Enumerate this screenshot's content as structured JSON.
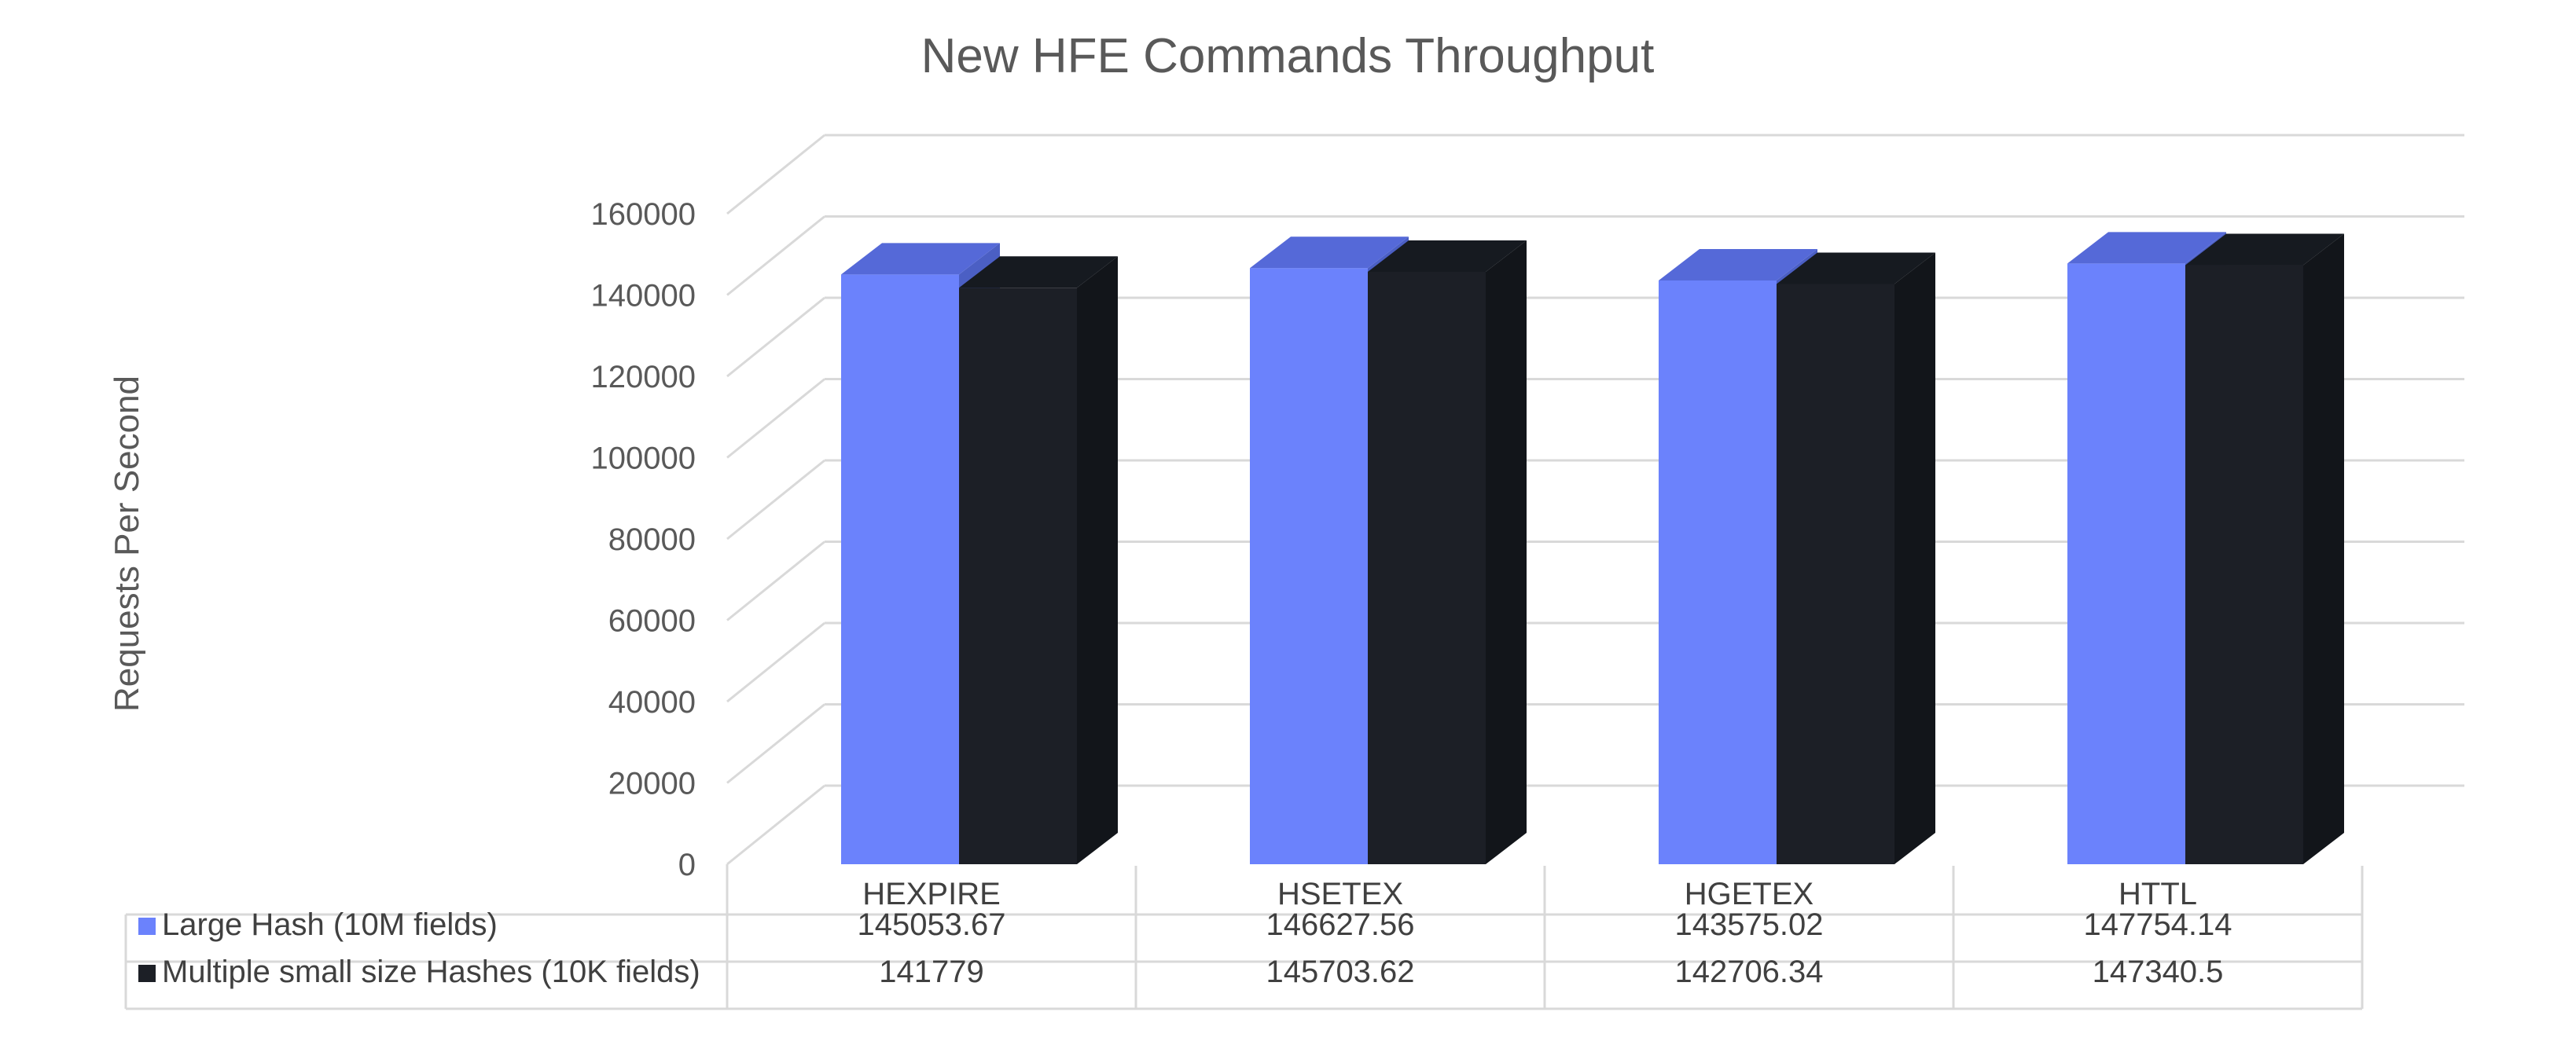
{
  "chart_data": {
    "type": "bar",
    "title": "New HFE Commands Throughput",
    "ylabel": "Requests Per Second",
    "xlabel": "",
    "categories": [
      "HEXPIRE",
      "HSETEX",
      "HGETEX",
      "HTTL"
    ],
    "y_ticks": [
      "0",
      "20000",
      "40000",
      "60000",
      "80000",
      "100000",
      "120000",
      "140000",
      "160000"
    ],
    "ylim": [
      0,
      160000
    ],
    "grid": true,
    "legend_placement": "data table below chart",
    "series": [
      {
        "name": "Large Hash (10M fields)",
        "color": "#6B82FC",
        "values": [
          145053.67,
          146627.56,
          143575.02,
          147754.14
        ],
        "labels": [
          "145053.67",
          "146627.56",
          "143575.02",
          "147754.14"
        ]
      },
      {
        "name": "Multiple small size Hashes (10K fields)",
        "color": "#1C1F26",
        "values": [
          141779,
          145703.62,
          142706.34,
          147340.5
        ],
        "labels": [
          "141779",
          "145703.62",
          "142706.34",
          "147340.5"
        ]
      }
    ]
  }
}
